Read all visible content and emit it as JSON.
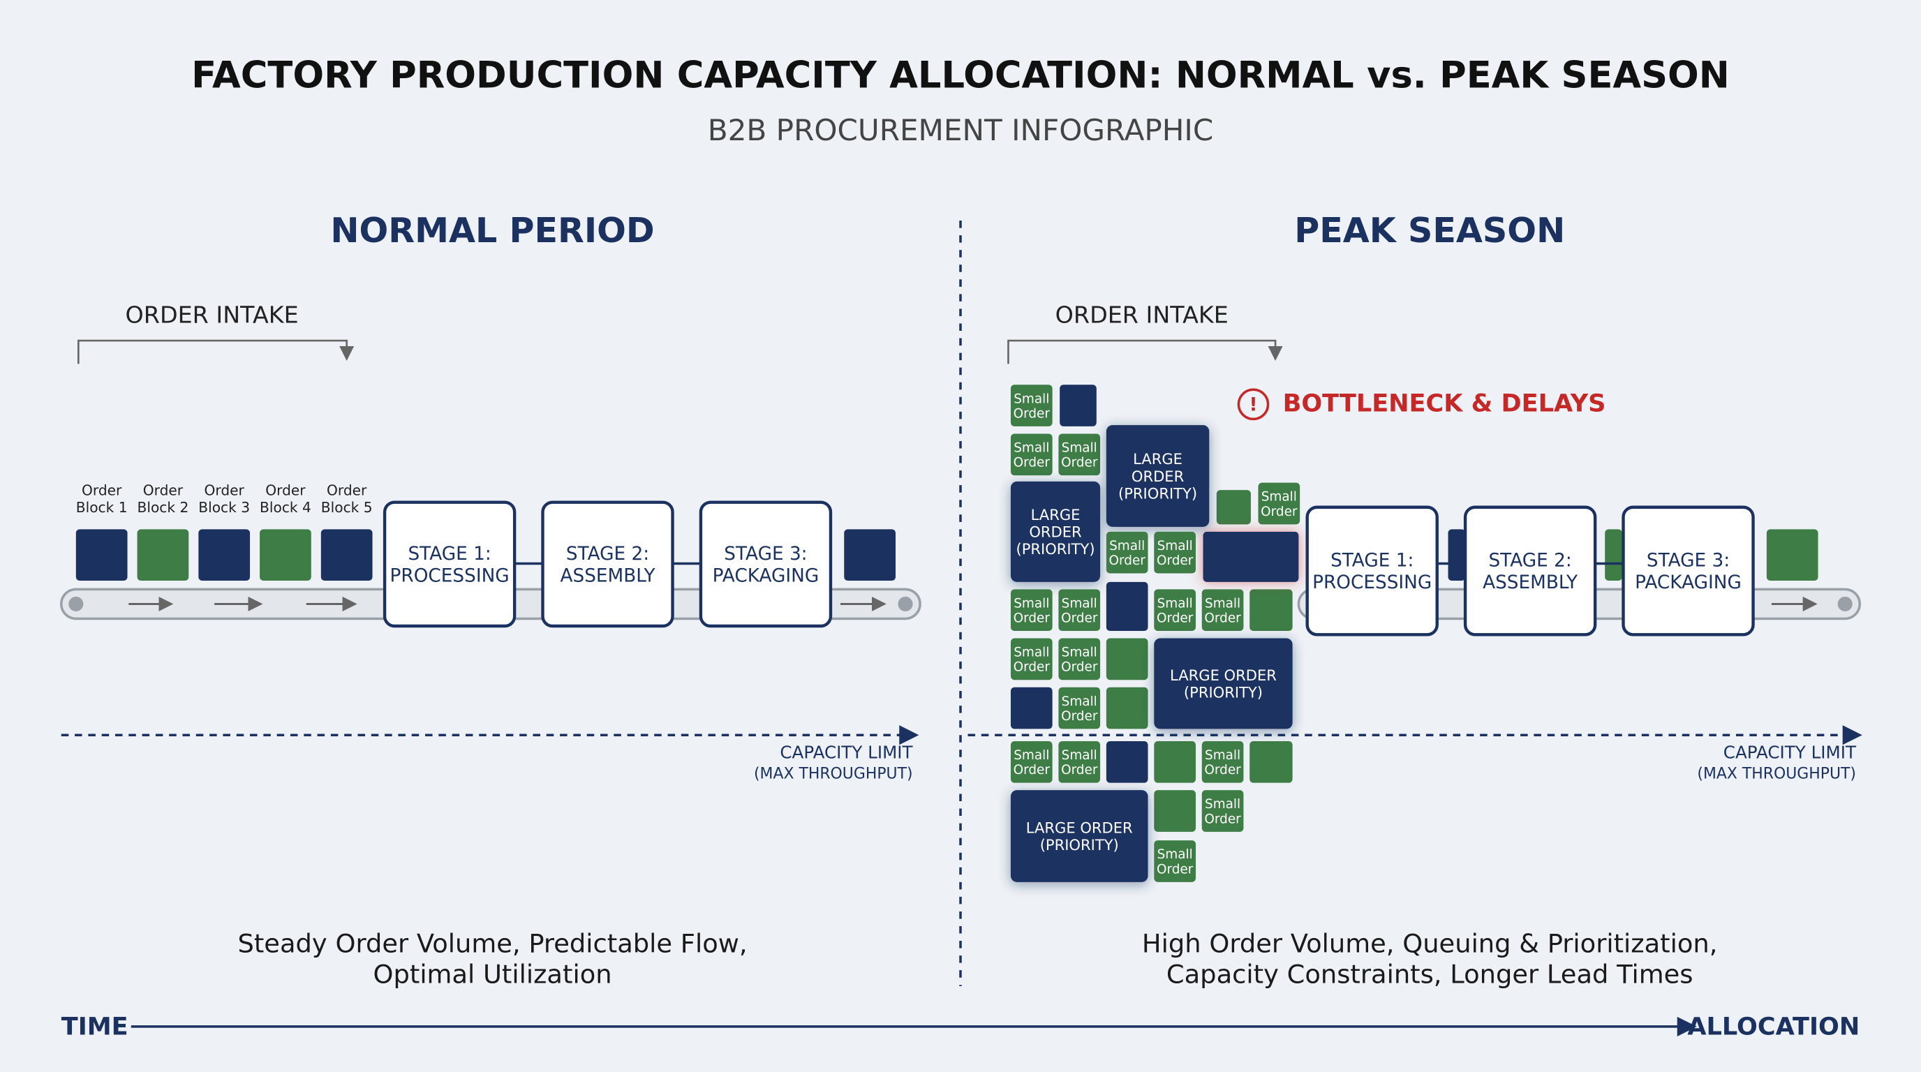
{
  "header": {
    "title": "FACTORY PRODUCTION CAPACITY ALLOCATION: NORMAL vs. PEAK SEASON",
    "subtitle": "B2B PROCUREMENT INFOGRAPHIC"
  },
  "normal": {
    "heading": "NORMAL PERIOD",
    "intake_label": "ORDER INTAKE",
    "blocks": [
      [
        "Order",
        "Block 1"
      ],
      [
        "Order",
        "Block 2"
      ],
      [
        "Order",
        "Block 3"
      ],
      [
        "Order",
        "Block 4"
      ],
      [
        "Order",
        "Block 5"
      ]
    ],
    "stages": [
      [
        "STAGE 1:",
        "PROCESSING"
      ],
      [
        "STAGE 2:",
        "ASSEMBLY"
      ],
      [
        "STAGE 3:",
        "PACKAGING"
      ]
    ],
    "capacity": [
      "CAPACITY LIMIT",
      "(MAX THROUGHPUT)"
    ],
    "caption": [
      "Steady Order Volume, Predictable Flow,",
      "Optimal Utilization"
    ]
  },
  "peak": {
    "heading": "PEAK SEASON",
    "intake_label": "ORDER INTAKE",
    "alert": "BOTTLENECK & DELAYS",
    "orders": [
      [
        "Small",
        "Order"
      ],
      [
        "Small",
        "Order"
      ],
      [
        "Small",
        "Order"
      ],
      [
        "LARGE",
        "ORDER",
        "(PRIORITY)"
      ],
      [
        "LARGE",
        "ORDER",
        "(PRIORITY)"
      ],
      [
        "Small",
        "Order"
      ],
      [
        "Small",
        "Order"
      ],
      [
        "Small",
        "Order"
      ],
      [
        "Small",
        "Order"
      ],
      [
        "Small",
        "Order"
      ],
      [
        "Small",
        "Order"
      ],
      [
        "Small",
        "Order"
      ],
      [
        "Small",
        "Order"
      ],
      [
        "Small",
        "Order"
      ],
      [
        "LARGE ORDER",
        "(PRIORITY)"
      ],
      [
        "Small",
        "Order"
      ],
      [
        "Small",
        "Order"
      ],
      [
        "Small",
        "Order"
      ],
      [
        "Small",
        "Order"
      ],
      [
        "Small",
        "Order"
      ],
      [
        "LARGE ORDER",
        "(PRIORITY)"
      ],
      [
        "Small",
        "Order"
      ]
    ],
    "stages": [
      [
        "STAGE 1:",
        "PROCESSING"
      ],
      [
        "STAGE 2:",
        "ASSEMBLY"
      ],
      [
        "STAGE 3:",
        "PACKAGING"
      ]
    ],
    "capacity": [
      "CAPACITY LIMIT",
      "(MAX THROUGHPUT)"
    ],
    "caption": [
      "High Order Volume, Queuing & Prioritization,",
      "Capacity Constraints, Longer Lead Times"
    ]
  },
  "axis": {
    "start": "TIME",
    "end": "ALLOCATION"
  }
}
